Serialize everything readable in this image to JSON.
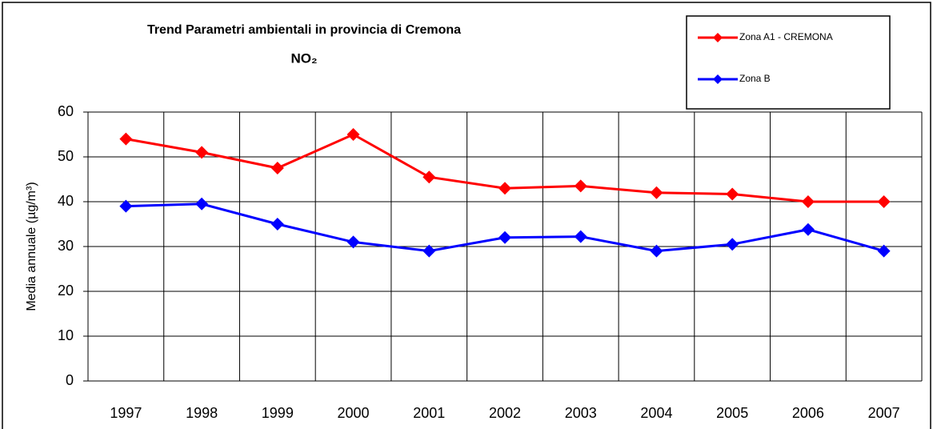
{
  "chart_data": {
    "type": "line",
    "title": "Trend Parametri ambientali in provincia di Cremona",
    "subtitle": "NO₂",
    "y_label": "Media annuale (µg/m³)",
    "categories": [
      "1997",
      "1998",
      "1999",
      "2000",
      "2001",
      "2002",
      "2003",
      "2004",
      "2005",
      "2006",
      "2007"
    ],
    "series": [
      {
        "name": "Zona A1 - CREMONA",
        "color": "#ff0000",
        "values": [
          54,
          51,
          47.5,
          55,
          45.5,
          43,
          43.5,
          42,
          41.7,
          40,
          40
        ]
      },
      {
        "name": "Zona B",
        "color": "#0000ff",
        "values": [
          39,
          39.5,
          35,
          31,
          29,
          32,
          32.2,
          29,
          30.5,
          33.8,
          29
        ]
      }
    ],
    "ylim": [
      0,
      60
    ],
    "yticks": [
      0,
      10,
      20,
      30,
      40,
      50,
      60
    ],
    "grid": true,
    "legend": "upper right"
  }
}
